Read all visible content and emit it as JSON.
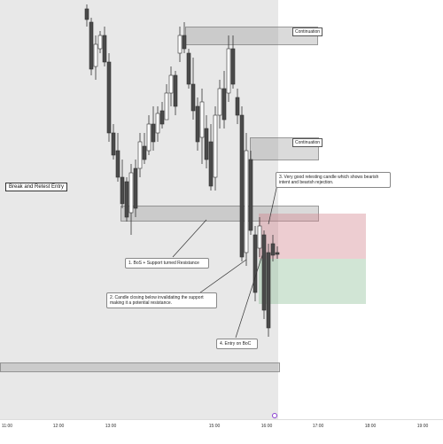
{
  "chart": {
    "side_label": "Break and Retest Entry",
    "zones": [
      {
        "label": "Continuation"
      },
      {
        "label": "Continuation"
      }
    ],
    "notes": [
      {
        "text": "1. BoS + Support turned Resistance"
      },
      {
        "text": "2. Candle closing below invalidating the support making it a potential resistance."
      },
      {
        "text": "3. Very good retesting candle which shows bearish intent and bearish rejection."
      },
      {
        "text": "4. Entry on BoC"
      }
    ],
    "time_axis": [
      "11:00",
      "12:00",
      "13:00",
      "15:00",
      "16:00",
      "17:00",
      "18:00",
      "19:00"
    ],
    "colors": {
      "up": "#ffffff",
      "down": "#4a4a4a",
      "risk": "#d2828c",
      "reward": "#8cbe96",
      "session": "#e8e8e8"
    }
  }
}
